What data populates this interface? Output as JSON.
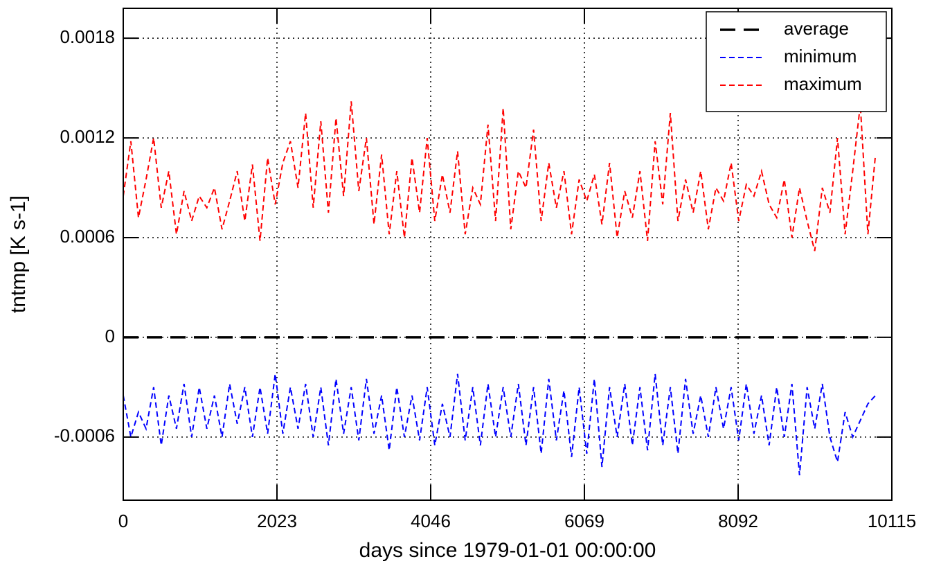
{
  "chart_data": {
    "type": "line",
    "xlabel": "days since 1979-01-01 00:00:00",
    "ylabel": "tntmp [K s-1]",
    "x": [
      0,
      100,
      200,
      300,
      400,
      500,
      600,
      700,
      800,
      900,
      1000,
      1100,
      1200,
      1300,
      1400,
      1500,
      1600,
      1700,
      1800,
      1900,
      2000,
      2100,
      2200,
      2300,
      2400,
      2500,
      2600,
      2700,
      2800,
      2900,
      3000,
      3100,
      3200,
      3300,
      3400,
      3500,
      3600,
      3700,
      3800,
      3900,
      4000,
      4100,
      4200,
      4300,
      4400,
      4500,
      4600,
      4700,
      4800,
      4900,
      5000,
      5100,
      5200,
      5300,
      5400,
      5500,
      5600,
      5700,
      5800,
      5900,
      6000,
      6100,
      6200,
      6300,
      6400,
      6500,
      6600,
      6700,
      6800,
      6900,
      7000,
      7100,
      7200,
      7300,
      7400,
      7500,
      7600,
      7700,
      7800,
      7900,
      8000,
      8100,
      8200,
      8300,
      8400,
      8500,
      8600,
      8700,
      8800,
      8900,
      9000,
      9100,
      9200,
      9300,
      9400,
      9500,
      9600,
      9700,
      9800,
      9900
    ],
    "series": [
      {
        "name": "average",
        "color": "#000000",
        "values": [
          0,
          0,
          0,
          0,
          0,
          0,
          0,
          0,
          0,
          0,
          0,
          0,
          0,
          0,
          0,
          0,
          0,
          0,
          0,
          0,
          0,
          0,
          0,
          0,
          0,
          0,
          0,
          0,
          0,
          0,
          0,
          0,
          0,
          0,
          0,
          0,
          0,
          0,
          0,
          0,
          0,
          0,
          0,
          0,
          0,
          0,
          0,
          0,
          0,
          0,
          0,
          0,
          0,
          0,
          0,
          0,
          0,
          0,
          0,
          0,
          0,
          0,
          0,
          0,
          0,
          0,
          0,
          0,
          0,
          0,
          0,
          0,
          0,
          0,
          0,
          0,
          0,
          0,
          0,
          0,
          0,
          0,
          0,
          0,
          0,
          0,
          0,
          0,
          0,
          0,
          0,
          0,
          0,
          0,
          0,
          0,
          0,
          0,
          0,
          0
        ]
      },
      {
        "name": "minimum",
        "color": "#0000ff",
        "values": [
          -0.00035,
          -0.0006,
          -0.00045,
          -0.00055,
          -0.0003,
          -0.00065,
          -0.00035,
          -0.00055,
          -0.00028,
          -0.0006,
          -0.0003,
          -0.00055,
          -0.00035,
          -0.0006,
          -0.00028,
          -0.00052,
          -0.0003,
          -0.0006,
          -0.0003,
          -0.00058,
          -0.00022,
          -0.00058,
          -0.0003,
          -0.00055,
          -0.00028,
          -0.0006,
          -0.0003,
          -0.00065,
          -0.00025,
          -0.00058,
          -0.0003,
          -0.00062,
          -0.00025,
          -0.00058,
          -0.00035,
          -0.00068,
          -0.0003,
          -0.0006,
          -0.00035,
          -0.00062,
          -0.0003,
          -0.00065,
          -0.0004,
          -0.0006,
          -0.00022,
          -0.00062,
          -0.0003,
          -0.00065,
          -0.00028,
          -0.0006,
          -0.0003,
          -0.0006,
          -0.00028,
          -0.00065,
          -0.0003,
          -0.0007,
          -0.00025,
          -0.00062,
          -0.00032,
          -0.00072,
          -0.0003,
          -0.0007,
          -0.00025,
          -0.00078,
          -0.0003,
          -0.0006,
          -0.00028,
          -0.00065,
          -0.0003,
          -0.00068,
          -0.00022,
          -0.00065,
          -0.0003,
          -0.0007,
          -0.00025,
          -0.00058,
          -0.00035,
          -0.0006,
          -0.0003,
          -0.00055,
          -0.0003,
          -0.00062,
          -0.00028,
          -0.00058,
          -0.00035,
          -0.00065,
          -0.0003,
          -0.0006,
          -0.00028,
          -0.00083,
          -0.0003,
          -0.00055,
          -0.00028,
          -0.0006,
          -0.00075,
          -0.00045,
          -0.0006,
          -0.0005,
          -0.0004,
          -0.00035
        ]
      },
      {
        "name": "maximum",
        "color": "#ff0000",
        "values": [
          0.00085,
          0.00118,
          0.00072,
          0.00095,
          0.0012,
          0.00078,
          0.001,
          0.00062,
          0.00088,
          0.0007,
          0.00085,
          0.00078,
          0.0009,
          0.00065,
          0.00082,
          0.001,
          0.0007,
          0.00104,
          0.00058,
          0.00108,
          0.0008,
          0.00105,
          0.00118,
          0.0009,
          0.00135,
          0.00078,
          0.0013,
          0.00075,
          0.00132,
          0.00085,
          0.00142,
          0.00088,
          0.0012,
          0.00068,
          0.0011,
          0.00062,
          0.001,
          0.0006,
          0.00108,
          0.00075,
          0.0012,
          0.0007,
          0.00098,
          0.00075,
          0.00112,
          0.00062,
          0.0009,
          0.0008,
          0.00128,
          0.0007,
          0.00138,
          0.00065,
          0.001,
          0.0009,
          0.00125,
          0.0007,
          0.00105,
          0.00078,
          0.001,
          0.00062,
          0.00095,
          0.00082,
          0.00098,
          0.00068,
          0.00105,
          0.0006,
          0.00088,
          0.00072,
          0.001,
          0.00058,
          0.00118,
          0.0008,
          0.00135,
          0.0007,
          0.00095,
          0.00075,
          0.001,
          0.00065,
          0.0009,
          0.00082,
          0.00105,
          0.0007,
          0.00092,
          0.00085,
          0.001,
          0.0008,
          0.00072,
          0.00095,
          0.0006,
          0.0009,
          0.0007,
          0.00052,
          0.0009,
          0.00075,
          0.0012,
          0.00062,
          0.001,
          0.0014,
          0.00062,
          0.0011
        ]
      }
    ],
    "xlim": [
      0,
      10115
    ],
    "xticks": [
      0,
      2023,
      4046,
      6069,
      8092,
      10115
    ],
    "ylim": [
      -0.00098,
      0.00198
    ],
    "yticks": [
      -0.0006,
      0,
      0.0006,
      0.0012,
      0.0018
    ],
    "grid": true,
    "legend": "upper right"
  }
}
